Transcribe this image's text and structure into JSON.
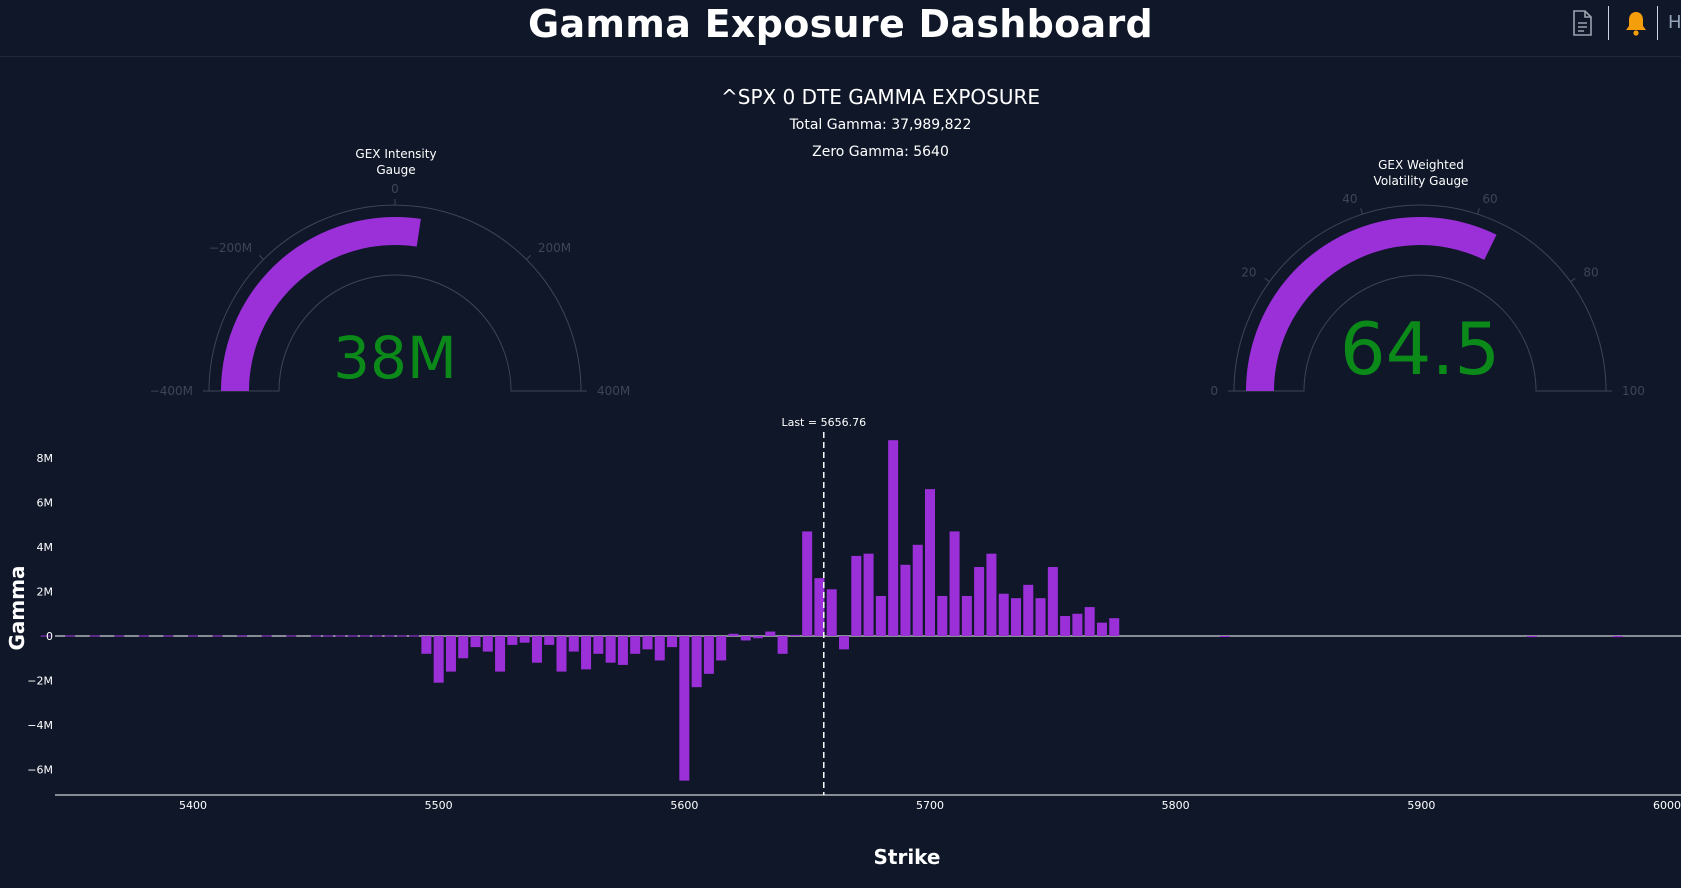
{
  "header": {
    "title": "Gamma Exposure Dashboard",
    "icons": [
      "document-icon",
      "bell-icon"
    ],
    "truncated_text": "H",
    "bell_color": "#f59e0b"
  },
  "panel": {
    "title": "^SPX 0 DTE GAMMA EXPOSURE",
    "total_gamma": "Total Gamma: 37,989,822",
    "zero_gamma": "Zero Gamma: 5640"
  },
  "gauges": [
    {
      "title_line1": "GEX Intensity",
      "title_line2": "Gauge",
      "value": 37989822,
      "value_text": "38M",
      "range": [
        -400000000,
        400000000
      ],
      "tick_values": [
        -400000000,
        -200000000,
        0,
        200000000,
        400000000
      ],
      "ticks": [
        "−400M",
        "−200M",
        "0",
        "200M",
        "400M"
      ],
      "bar_color": "#9b30d9",
      "value_color": "#0b8a1a"
    },
    {
      "title_line1": "GEX Weighted",
      "title_line2": "Volatility Gauge",
      "value": 64.5,
      "value_text": "64.5",
      "range": [
        0,
        100
      ],
      "tick_values": [
        0,
        20,
        40,
        60,
        80,
        100
      ],
      "ticks": [
        "0",
        "20",
        "40",
        "60",
        "80",
        "100"
      ],
      "bar_color": "#9b30d9",
      "value_color": "#0b8a1a"
    }
  ],
  "chart_data": {
    "type": "bar",
    "xlabel": "Strike",
    "ylabel": "Gamma",
    "xlim": [
      5338,
      6000
    ],
    "ylim": [
      -7.1,
      8.8
    ],
    "x_ticks": [
      5400,
      5500,
      5600,
      5700,
      5800,
      5900,
      6000
    ],
    "y_ticks": [
      -6,
      -4,
      -2,
      0,
      2,
      4,
      6,
      8
    ],
    "y_tick_labels": [
      "−6M",
      "−4M",
      "−2M",
      "0",
      "2M",
      "4M",
      "6M",
      "8M"
    ],
    "bar_color": "#9b30d9",
    "last_price": 5656.76,
    "last_label": "Last = 5656.76",
    "unit": "M",
    "strikes": [
      5340,
      5350,
      5360,
      5370,
      5380,
      5390,
      5400,
      5410,
      5420,
      5430,
      5440,
      5450,
      5455,
      5460,
      5465,
      5470,
      5475,
      5480,
      5485,
      5490,
      5495,
      5500,
      5505,
      5510,
      5515,
      5520,
      5525,
      5530,
      5535,
      5540,
      5545,
      5550,
      5555,
      5560,
      5565,
      5570,
      5575,
      5580,
      5585,
      5590,
      5595,
      5600,
      5605,
      5610,
      5615,
      5620,
      5625,
      5630,
      5635,
      5640,
      5645,
      5650,
      5655,
      5660,
      5665,
      5670,
      5675,
      5680,
      5685,
      5690,
      5695,
      5700,
      5705,
      5710,
      5715,
      5720,
      5725,
      5730,
      5735,
      5740,
      5745,
      5750,
      5755,
      5760,
      5765,
      5770,
      5775,
      5820,
      5945,
      5980
    ],
    "values": [
      0.02,
      0.02,
      0.02,
      0.02,
      0.02,
      0.02,
      0.02,
      0.02,
      0.03,
      0.02,
      0.02,
      0.02,
      0.02,
      0.02,
      0.02,
      0.02,
      0.02,
      0.02,
      0.02,
      0.02,
      -0.8,
      -2.1,
      -1.6,
      -1.0,
      -0.5,
      -0.7,
      -1.6,
      -0.4,
      -0.3,
      -1.2,
      -0.4,
      -1.6,
      -0.7,
      -1.5,
      -0.8,
      -1.2,
      -1.3,
      -0.8,
      -0.6,
      -1.1,
      -0.5,
      -6.5,
      -2.3,
      -1.7,
      -1.1,
      0.1,
      -0.2,
      -0.1,
      0.2,
      -0.8,
      0.05,
      4.7,
      2.6,
      2.1,
      -0.6,
      3.6,
      3.7,
      1.8,
      8.8,
      3.2,
      4.1,
      6.6,
      1.8,
      4.7,
      1.8,
      3.1,
      3.7,
      1.9,
      1.7,
      2.3,
      1.7,
      3.1,
      0.9,
      1.0,
      1.3,
      0.6,
      0.8,
      -0.04,
      -0.05,
      -0.05
    ]
  }
}
